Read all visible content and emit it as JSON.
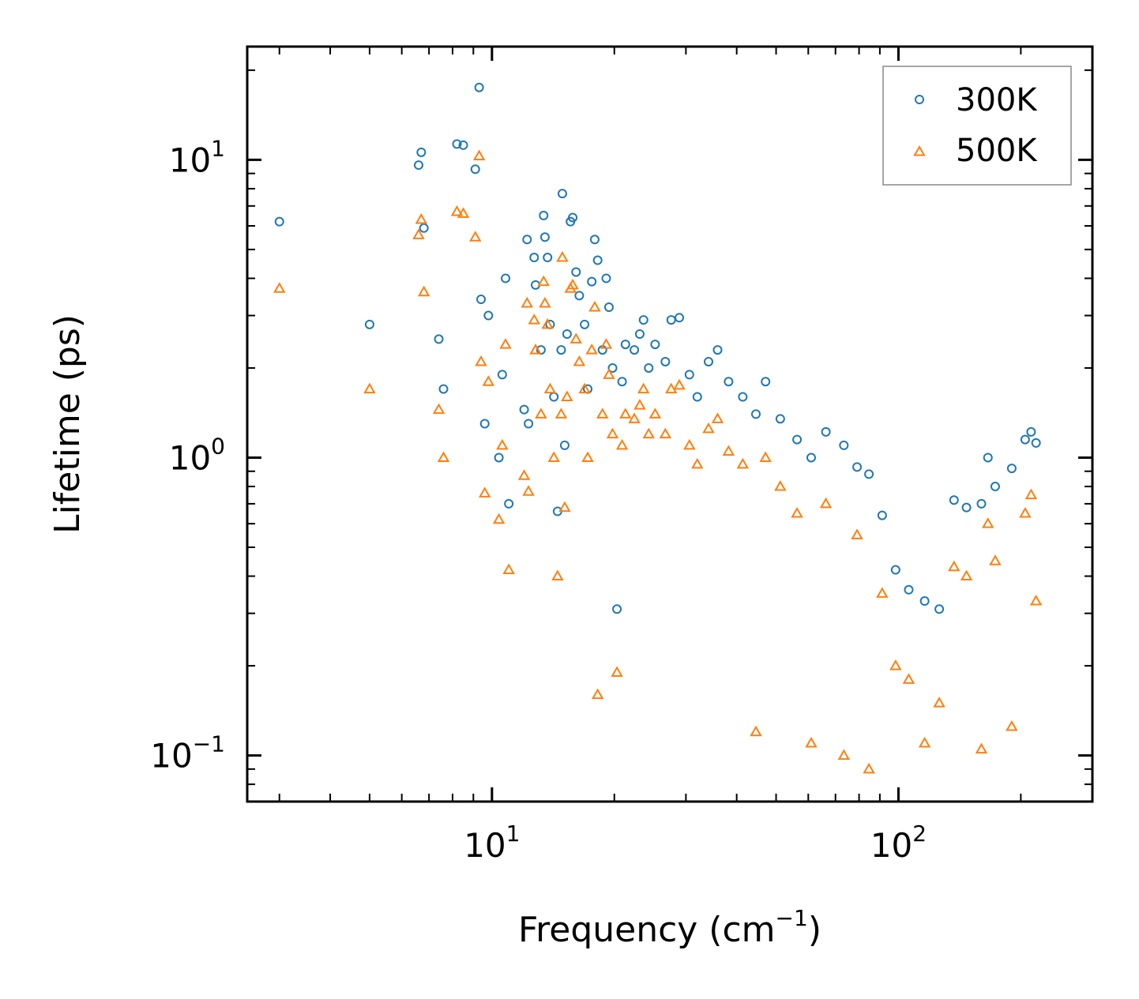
{
  "chart_data": {
    "type": "scatter",
    "title": "",
    "xlabel": "Frequency (cm",
    "xlabel_sup": "−1",
    "xlabel_close": ")",
    "ylabel": "Lifetime (ps)",
    "xscale": "log",
    "yscale": "log",
    "xlim": [
      2.5,
      300
    ],
    "ylim": [
      0.07,
      24
    ],
    "x_ticks": [
      {
        "value": 10,
        "base": "10",
        "exp": "1"
      },
      {
        "value": 100,
        "base": "10",
        "exp": "2"
      }
    ],
    "y_ticks": [
      {
        "value": 0.1,
        "base": "10",
        "exp": "−1"
      },
      {
        "value": 1,
        "base": "10",
        "exp": "0"
      },
      {
        "value": 10,
        "base": "10",
        "exp": "1"
      }
    ],
    "legend_position": "top-right",
    "series": [
      {
        "name": "300K",
        "marker": "circle",
        "color": "#1f77b4",
        "points": [
          [
            3.0,
            6.2
          ],
          [
            5.0,
            2.8
          ],
          [
            6.6,
            9.6
          ],
          [
            6.7,
            10.6
          ],
          [
            6.8,
            5.9
          ],
          [
            7.4,
            2.5
          ],
          [
            7.6,
            1.7
          ],
          [
            8.2,
            11.3
          ],
          [
            8.5,
            11.2
          ],
          [
            9.1,
            9.3
          ],
          [
            9.3,
            17.5
          ],
          [
            9.4,
            3.4
          ],
          [
            9.6,
            1.3
          ],
          [
            9.8,
            3.0
          ],
          [
            10.4,
            1.0
          ],
          [
            10.6,
            1.9
          ],
          [
            10.8,
            4.0
          ],
          [
            11.0,
            0.7
          ],
          [
            12.0,
            1.45
          ],
          [
            12.2,
            5.4
          ],
          [
            12.3,
            1.3
          ],
          [
            12.7,
            4.7
          ],
          [
            12.8,
            3.8
          ],
          [
            13.2,
            2.3
          ],
          [
            13.4,
            6.5
          ],
          [
            13.5,
            5.5
          ],
          [
            13.7,
            4.7
          ],
          [
            13.9,
            2.8
          ],
          [
            14.2,
            1.6
          ],
          [
            14.5,
            0.66
          ],
          [
            14.8,
            2.3
          ],
          [
            14.9,
            7.7
          ],
          [
            15.1,
            1.1
          ],
          [
            15.3,
            2.6
          ],
          [
            15.6,
            6.2
          ],
          [
            15.8,
            6.4
          ],
          [
            16.1,
            4.2
          ],
          [
            16.4,
            3.5
          ],
          [
            16.9,
            2.8
          ],
          [
            17.2,
            1.7
          ],
          [
            17.6,
            3.9
          ],
          [
            17.9,
            5.4
          ],
          [
            18.2,
            4.6
          ],
          [
            18.7,
            2.3
          ],
          [
            19.1,
            4.0
          ],
          [
            19.4,
            3.2
          ],
          [
            19.8,
            2.0
          ],
          [
            20.3,
            0.31
          ],
          [
            20.9,
            1.8
          ],
          [
            21.3,
            2.4
          ],
          [
            22.4,
            2.3
          ],
          [
            23.1,
            2.6
          ],
          [
            23.6,
            2.9
          ],
          [
            24.3,
            2.0
          ],
          [
            25.2,
            2.4
          ],
          [
            26.7,
            2.1
          ],
          [
            27.6,
            2.9
          ],
          [
            28.9,
            2.95
          ],
          [
            30.6,
            1.9
          ],
          [
            32.0,
            1.6
          ],
          [
            34.1,
            2.1
          ],
          [
            35.9,
            2.3
          ],
          [
            38.2,
            1.8
          ],
          [
            41.4,
            1.6
          ],
          [
            44.6,
            1.4
          ],
          [
            47.1,
            1.8
          ],
          [
            51.2,
            1.35
          ],
          [
            56.3,
            1.15
          ],
          [
            61.0,
            1.0
          ],
          [
            66.3,
            1.22
          ],
          [
            73.4,
            1.1
          ],
          [
            79.1,
            0.93
          ],
          [
            84.6,
            0.88
          ],
          [
            91.2,
            0.64
          ],
          [
            98.4,
            0.42
          ],
          [
            106.0,
            0.36
          ],
          [
            116.0,
            0.33
          ],
          [
            126.0,
            0.31
          ],
          [
            137.0,
            0.72
          ],
          [
            147.0,
            0.68
          ],
          [
            160.0,
            0.7
          ],
          [
            166.0,
            1.0
          ],
          [
            173.0,
            0.8
          ],
          [
            190.0,
            0.92
          ],
          [
            205.0,
            1.15
          ],
          [
            212.0,
            1.22
          ],
          [
            218.0,
            1.12
          ]
        ]
      },
      {
        "name": "500K",
        "marker": "triangle",
        "color": "#ff7f0e",
        "points": [
          [
            3.0,
            3.7
          ],
          [
            5.0,
            1.7
          ],
          [
            6.6,
            5.6
          ],
          [
            6.7,
            6.3
          ],
          [
            6.8,
            3.6
          ],
          [
            7.4,
            1.45
          ],
          [
            7.6,
            1.0
          ],
          [
            8.2,
            6.7
          ],
          [
            8.5,
            6.6
          ],
          [
            9.1,
            5.5
          ],
          [
            9.3,
            10.3
          ],
          [
            9.4,
            2.1
          ],
          [
            9.6,
            0.76
          ],
          [
            9.8,
            1.8
          ],
          [
            10.4,
            0.62
          ],
          [
            10.6,
            1.1
          ],
          [
            10.8,
            2.4
          ],
          [
            11.0,
            0.42
          ],
          [
            12.0,
            0.87
          ],
          [
            12.2,
            3.3
          ],
          [
            12.3,
            0.77
          ],
          [
            12.7,
            2.9
          ],
          [
            12.8,
            2.3
          ],
          [
            13.2,
            1.4
          ],
          [
            13.4,
            3.9
          ],
          [
            13.5,
            3.3
          ],
          [
            13.7,
            2.8
          ],
          [
            13.9,
            1.7
          ],
          [
            14.2,
            1.0
          ],
          [
            14.5,
            0.4
          ],
          [
            14.8,
            1.4
          ],
          [
            14.9,
            4.7
          ],
          [
            15.1,
            0.68
          ],
          [
            15.3,
            1.6
          ],
          [
            15.6,
            3.7
          ],
          [
            15.8,
            3.8
          ],
          [
            16.1,
            2.5
          ],
          [
            16.4,
            2.1
          ],
          [
            16.9,
            1.7
          ],
          [
            17.2,
            1.0
          ],
          [
            17.6,
            2.3
          ],
          [
            17.9,
            3.2
          ],
          [
            18.2,
            0.16
          ],
          [
            18.7,
            1.4
          ],
          [
            19.1,
            2.4
          ],
          [
            19.4,
            1.9
          ],
          [
            19.8,
            1.2
          ],
          [
            20.3,
            0.19
          ],
          [
            20.9,
            1.1
          ],
          [
            21.3,
            1.4
          ],
          [
            22.4,
            1.35
          ],
          [
            23.1,
            1.5
          ],
          [
            23.6,
            1.7
          ],
          [
            24.3,
            1.2
          ],
          [
            25.2,
            1.4
          ],
          [
            26.7,
            1.2
          ],
          [
            27.6,
            1.7
          ],
          [
            28.9,
            1.75
          ],
          [
            30.6,
            1.1
          ],
          [
            32.0,
            0.95
          ],
          [
            34.1,
            1.25
          ],
          [
            35.9,
            1.35
          ],
          [
            38.2,
            1.05
          ],
          [
            41.4,
            0.95
          ],
          [
            44.6,
            0.12
          ],
          [
            47.1,
            1.0
          ],
          [
            51.2,
            0.8
          ],
          [
            56.3,
            0.65
          ],
          [
            61.0,
            0.11
          ],
          [
            66.3,
            0.7
          ],
          [
            73.4,
            0.1
          ],
          [
            79.1,
            0.55
          ],
          [
            84.6,
            0.09
          ],
          [
            91.2,
            0.35
          ],
          [
            98.4,
            0.2
          ],
          [
            106.0,
            0.18
          ],
          [
            116.0,
            0.11
          ],
          [
            126.0,
            0.15
          ],
          [
            137.0,
            0.43
          ],
          [
            147.0,
            0.4
          ],
          [
            160.0,
            0.105
          ],
          [
            166.0,
            0.6
          ],
          [
            173.0,
            0.45
          ],
          [
            190.0,
            0.125
          ],
          [
            205.0,
            0.65
          ],
          [
            212.0,
            0.75
          ],
          [
            218.0,
            0.33
          ]
        ]
      }
    ]
  }
}
